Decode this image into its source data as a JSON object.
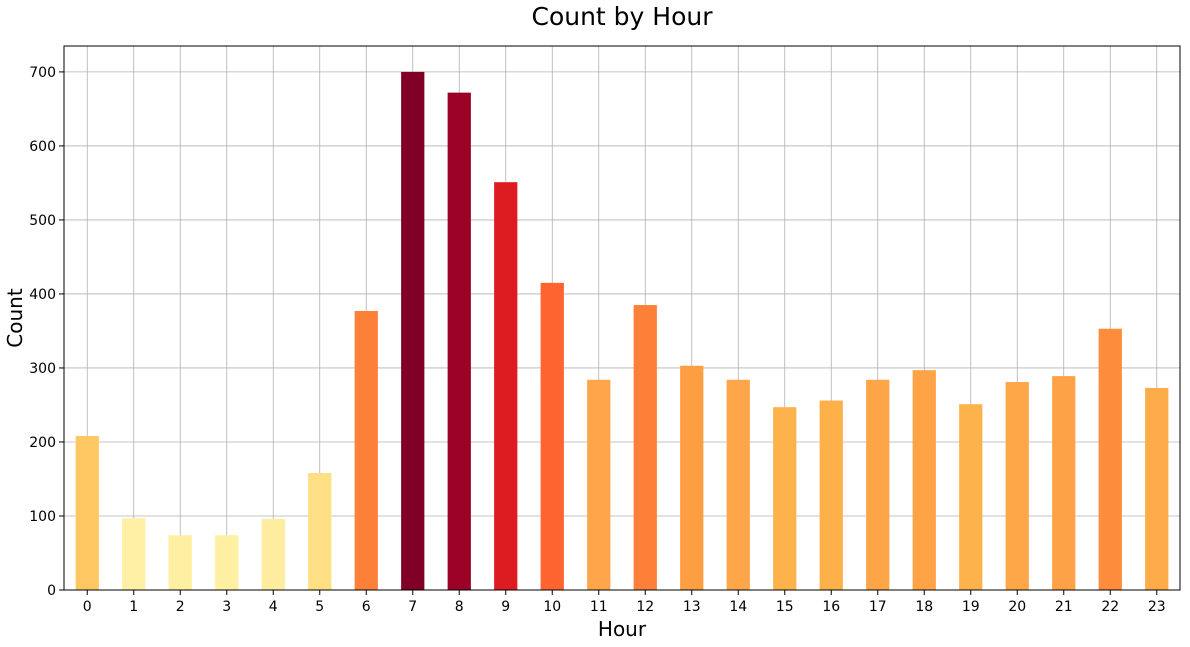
{
  "chart_data": {
    "type": "bar",
    "title": "Count by Hour",
    "xlabel": "Hour",
    "ylabel": "Count",
    "categories": [
      "0",
      "1",
      "2",
      "3",
      "4",
      "5",
      "6",
      "7",
      "8",
      "9",
      "10",
      "11",
      "12",
      "13",
      "14",
      "15",
      "16",
      "17",
      "18",
      "19",
      "20",
      "21",
      "22",
      "23"
    ],
    "values": [
      208,
      97,
      74,
      74,
      96,
      158,
      377,
      700,
      672,
      551,
      415,
      284,
      385,
      303,
      284,
      247,
      256,
      284,
      297,
      251,
      281,
      289,
      353,
      273
    ],
    "colors": [
      "#fec762",
      "#fff0a5",
      "#ffefa3",
      "#ffefa3",
      "#feec9f",
      "#fedf83",
      "#fd8038",
      "#800026",
      "#9b0127",
      "#dc1c20",
      "#fd6430",
      "#fea649",
      "#fe7f37",
      "#fd9e43",
      "#fea649",
      "#feb24c",
      "#feb04b",
      "#fea548",
      "#fea346",
      "#feb24c",
      "#fea749",
      "#fda247",
      "#fd8d3c",
      "#feab49"
    ],
    "ylim": [
      0,
      735
    ],
    "yticks": [
      0,
      100,
      200,
      300,
      400,
      500,
      600,
      700
    ],
    "grid": true,
    "legend": "none"
  }
}
